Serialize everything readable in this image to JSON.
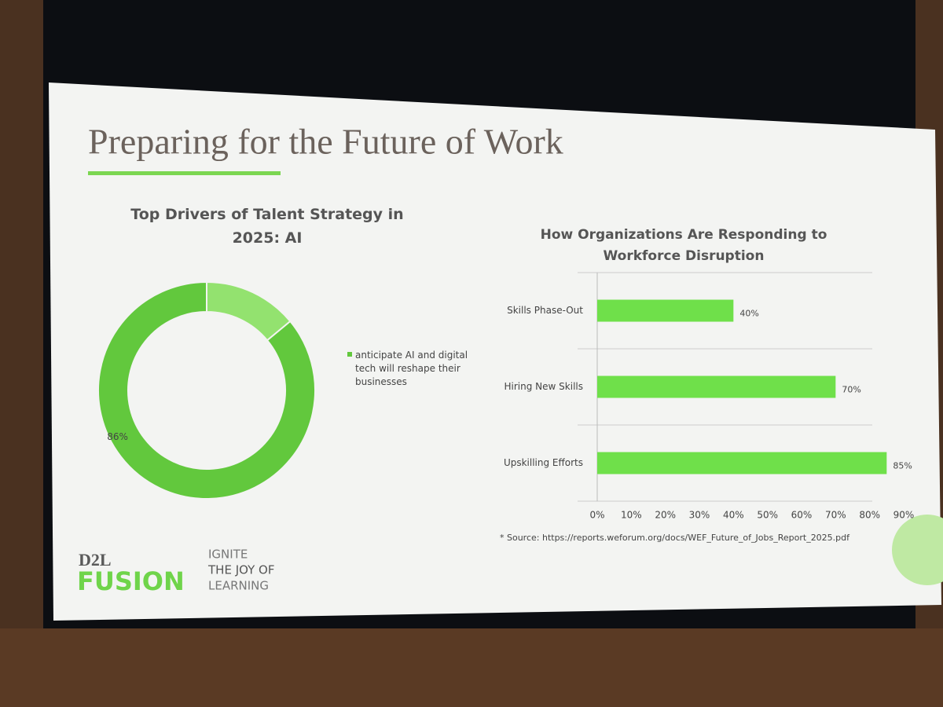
{
  "slide": {
    "title": "Preparing for the Future of Work",
    "source": "* Source: https://reports.weforum.org/docs/WEF_Future_of_Jobs_Report_2025.pdf",
    "logo": {
      "brand": "D2L",
      "product": "FUSION",
      "tagline": [
        "IGNITE",
        "THE JOY OF",
        "LEARNING"
      ]
    }
  },
  "chart_data": [
    {
      "type": "donut",
      "title": "Top Drivers of Talent Strategy in 2025: AI",
      "categories": [
        "anticipate AI and digital tech will reshape their businesses",
        null
      ],
      "values": [
        86,
        14
      ],
      "value_labels": [
        "86%",
        null
      ],
      "colors": [
        "#62c83d",
        "#93e26f"
      ],
      "legend": "right"
    },
    {
      "type": "hbar",
      "title": "How Organizations Are Responding to Workforce Disruption",
      "categories": [
        "Skills Phase-Out",
        "Hiring New Skills",
        "Upskilling Efforts"
      ],
      "values": [
        40,
        70,
        85
      ],
      "value_labels": [
        "40%",
        "70%",
        "85%"
      ],
      "color": "#6fe04a",
      "xlim": [
        0,
        90
      ],
      "xticks": [
        {
          "value": 0,
          "label": "0%"
        },
        {
          "value": 10,
          "label": "10%"
        },
        {
          "value": 20,
          "label": "20%"
        },
        {
          "value": 30,
          "label": "30%"
        },
        {
          "value": 40,
          "label": "40%"
        },
        {
          "value": 50,
          "label": "50%"
        },
        {
          "value": 60,
          "label": "60%"
        },
        {
          "value": 70,
          "label": "70%"
        },
        {
          "value": 80,
          "label": "80%"
        },
        {
          "value": 90,
          "label": "90%"
        }
      ]
    }
  ]
}
